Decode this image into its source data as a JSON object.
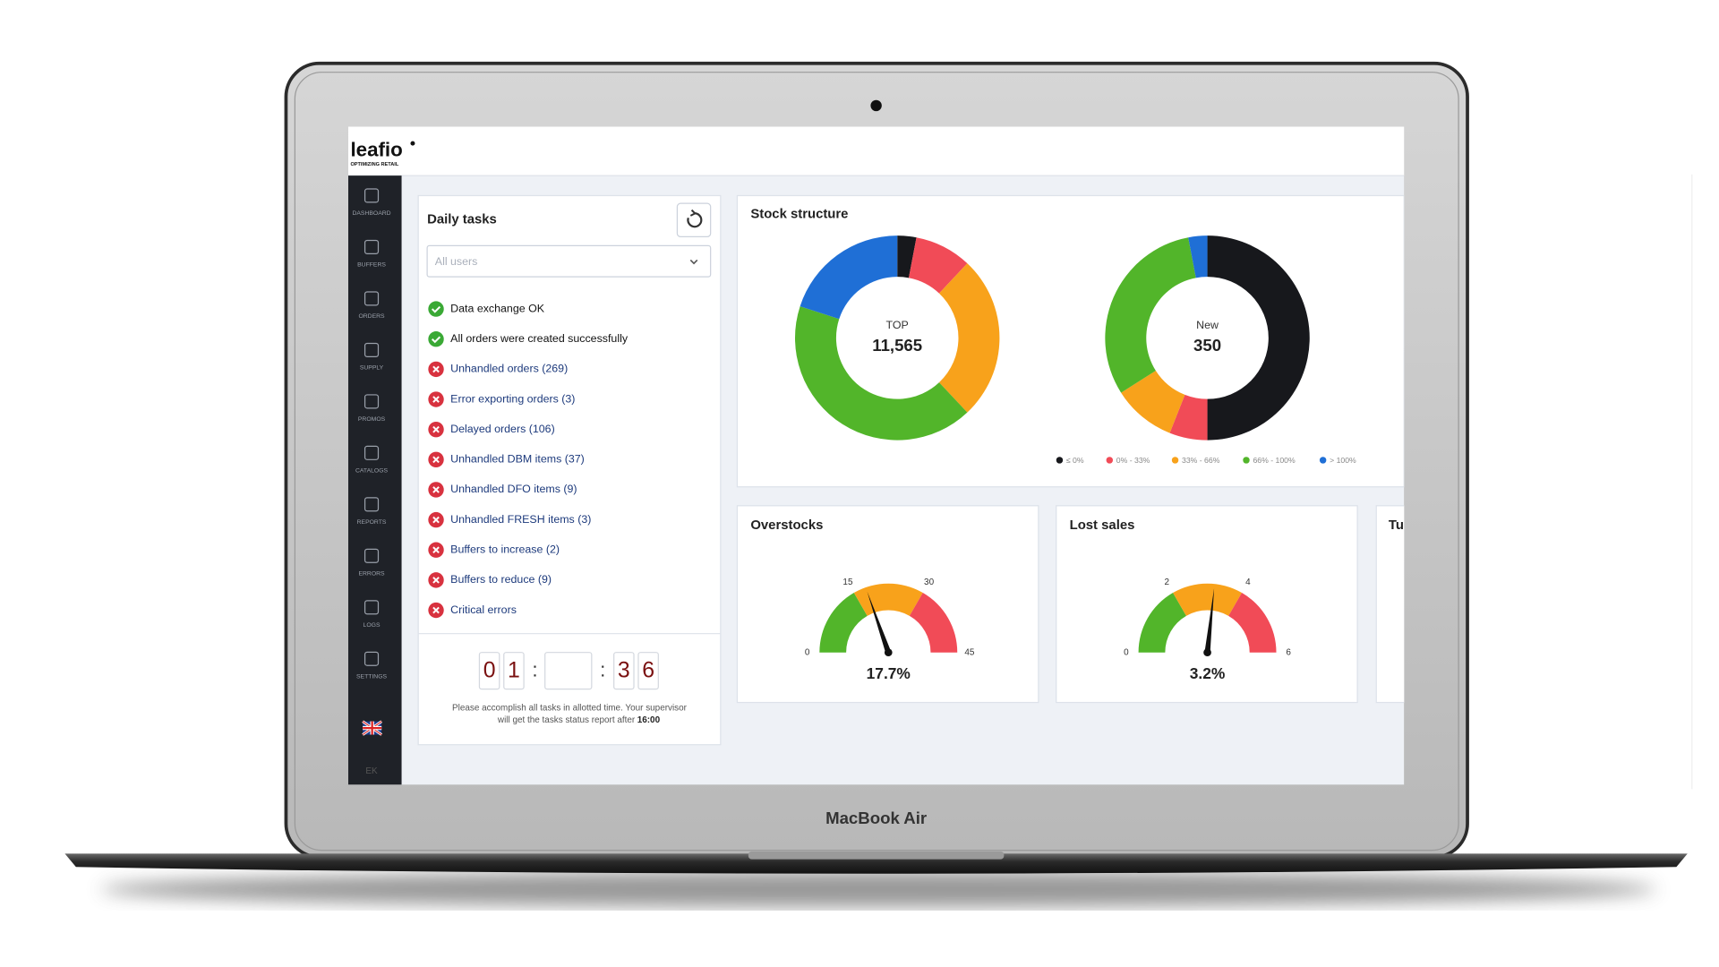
{
  "device": {
    "label": "MacBook Air"
  },
  "app": {
    "logo": "leafio",
    "tagline": "OPTIMIZING RETAIL"
  },
  "sidebar": {
    "items": [
      "DASHBOARD",
      "BUFFERS",
      "ORDERS",
      "SUPPLY",
      "PROMOS",
      "CATALOGS",
      "REPORTS",
      "ERRORS",
      "LOGS",
      "SETTINGS"
    ],
    "footer": "EK"
  },
  "daily_tasks": {
    "title": "Daily tasks",
    "filter": "All users",
    "tasks": [
      {
        "status": "ok",
        "text": "Data exchange OK"
      },
      {
        "status": "ok",
        "text": "All orders were created successfully"
      },
      {
        "status": "error",
        "text": "Unhandled orders (269)"
      },
      {
        "status": "error",
        "text": "Error exporting orders (3)"
      },
      {
        "status": "error",
        "text": "Delayed orders (106)"
      },
      {
        "status": "error",
        "text": "Unhandled DBM items (37)"
      },
      {
        "status": "error",
        "text": "Unhandled DFO items (9)"
      },
      {
        "status": "error",
        "text": "Unhandled FRESH items (3)"
      },
      {
        "status": "error",
        "text": "Buffers to increase (2)"
      },
      {
        "status": "error",
        "text": "Buffers to reduce (9)"
      },
      {
        "status": "error",
        "text": "Critical errors"
      }
    ],
    "timer": {
      "hours": [
        "0",
        "1"
      ],
      "seconds": [
        "3",
        "6"
      ],
      "separator": ":"
    },
    "note": [
      "Please accomplish all tasks in allotted time. Your supervisor",
      "will get the tasks status report after"
    ],
    "deadline": "16:00"
  },
  "stock_structure": {
    "title": "Stock structure",
    "legend": [
      {
        "label": "≤ 0%",
        "color": "#17181c"
      },
      {
        "label": "0% - 33%",
        "color": "#f14b57"
      },
      {
        "label": "33% - 66%",
        "color": "#f8a21b"
      },
      {
        "label": "66% - 100%",
        "color": "#52b52a"
      },
      {
        "label": "> 100%",
        "color": "#1f6fd6"
      }
    ],
    "donuts": [
      {
        "label": "TOP",
        "total": "11,565",
        "values": [
          3,
          9,
          26,
          42,
          20
        ]
      },
      {
        "label": "New",
        "total": "350",
        "values": [
          50,
          6,
          10,
          31,
          3
        ]
      }
    ]
  },
  "gauges": [
    {
      "title": "Overstocks",
      "ticks": [
        0,
        15,
        30,
        45
      ],
      "value": 17.7,
      "value_label": "17.7%"
    },
    {
      "title": "Lost sales",
      "ticks": [
        0,
        2,
        4,
        6
      ],
      "value": 3.2,
      "value_label": "3.2%"
    }
  ],
  "zone_colors": [
    "#52b52a",
    "#f8a21b",
    "#f14b57"
  ],
  "partial_card": {
    "title": "Tu"
  }
}
